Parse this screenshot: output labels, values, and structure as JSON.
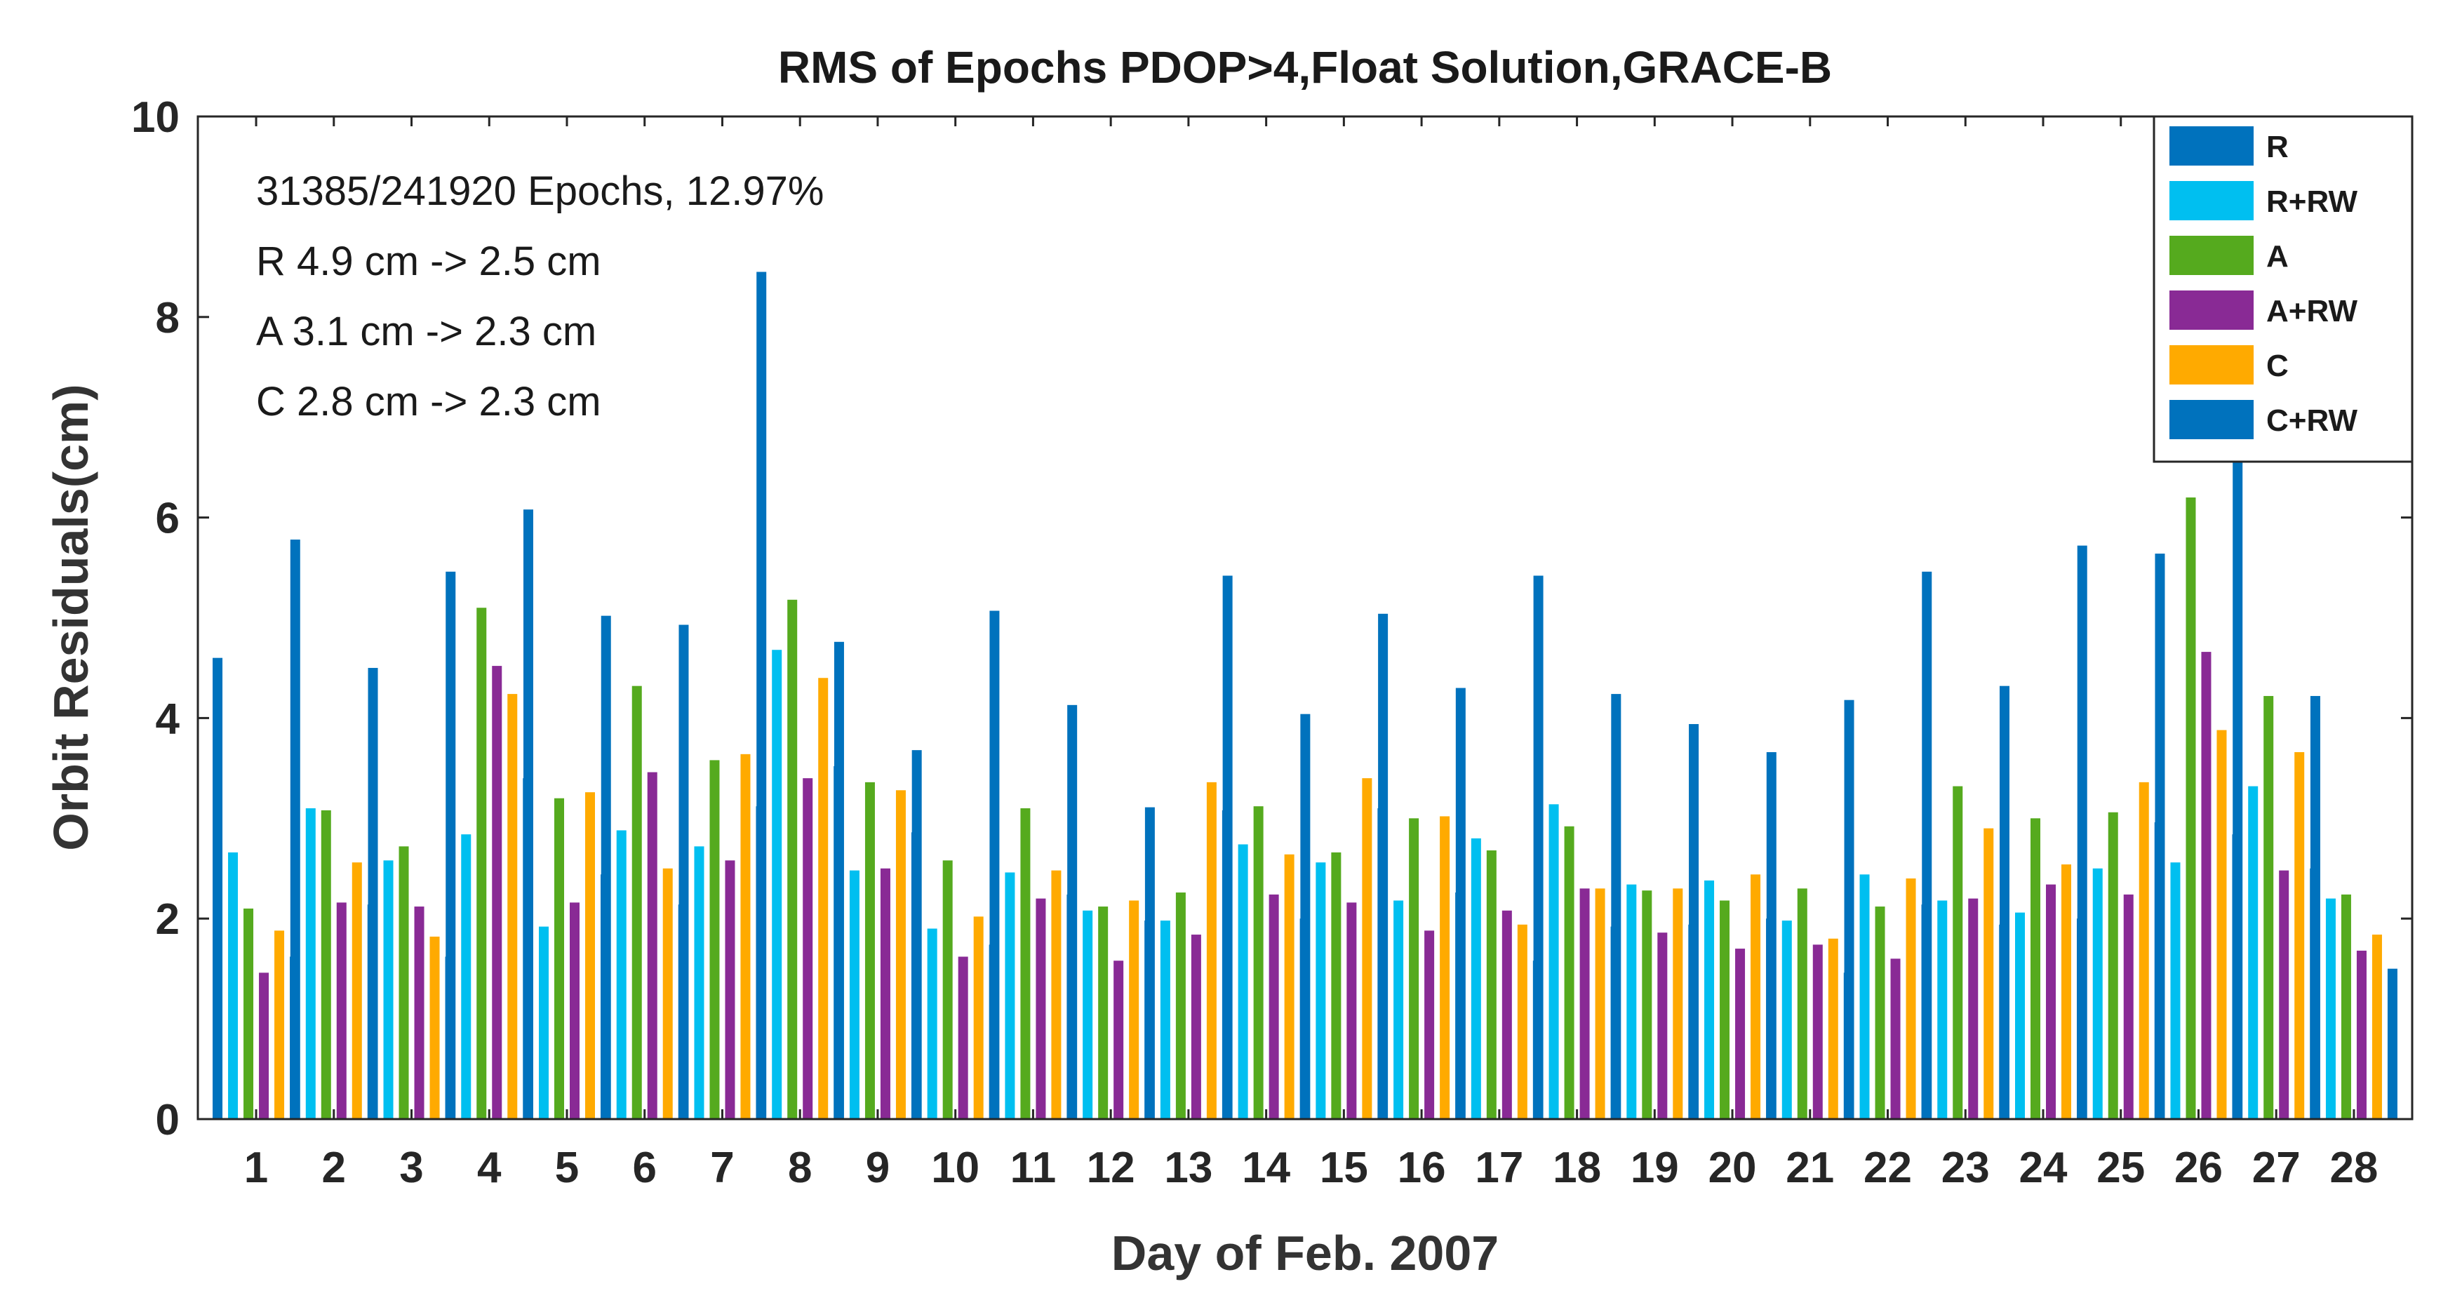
{
  "chart_data": {
    "type": "bar",
    "title": "RMS of Epochs PDOP>4,Float Solution,GRACE-B",
    "xlabel": "Day of Feb. 2007",
    "ylabel": "Orbit Residuals(cm)",
    "ylim": [
      0,
      10
    ],
    "yticks": [
      "0",
      "2",
      "4",
      "6",
      "8",
      "10"
    ],
    "categories": [
      "1",
      "2",
      "3",
      "4",
      "5",
      "6",
      "7",
      "8",
      "9",
      "10",
      "11",
      "12",
      "13",
      "14",
      "15",
      "16",
      "17",
      "18",
      "19",
      "20",
      "21",
      "22",
      "23",
      "24",
      "25",
      "26",
      "27",
      "28"
    ],
    "legend_position": "top-right",
    "annotations": [
      "31385/241920 Epochs, 12.97%",
      "R 4.9 cm -> 2.5 cm",
      "A 3.1 cm -> 2.3 cm",
      "C 2.8 cm -> 2.3 cm"
    ],
    "series": [
      {
        "name": "R",
        "color": "#0072BD",
        "values": [
          4.6,
          5.78,
          4.5,
          5.46,
          6.08,
          5.02,
          4.93,
          8.45,
          4.76,
          3.68,
          5.07,
          4.13,
          3.11,
          5.42,
          4.04,
          5.04,
          4.3,
          5.42,
          4.24,
          3.94,
          3.66,
          4.18,
          5.46,
          4.32,
          5.72,
          5.64,
          7.0,
          4.22
        ]
      },
      {
        "name": "R+RW",
        "color": "#00BFF0",
        "values": [
          2.66,
          3.1,
          2.58,
          2.84,
          1.92,
          2.88,
          2.72,
          4.68,
          2.48,
          1.9,
          2.46,
          2.08,
          1.98,
          2.74,
          2.56,
          2.18,
          2.8,
          3.14,
          2.34,
          2.38,
          1.98,
          2.44,
          2.18,
          2.06,
          2.5,
          2.56,
          3.32,
          2.2
        ]
      },
      {
        "name": "A",
        "color": "#55AA1E",
        "values": [
          2.1,
          3.08,
          2.72,
          5.1,
          3.2,
          4.32,
          3.58,
          5.18,
          3.36,
          2.58,
          3.1,
          2.12,
          2.26,
          3.12,
          2.66,
          3.0,
          2.68,
          2.92,
          2.28,
          2.18,
          2.3,
          2.12,
          3.32,
          3.0,
          3.06,
          6.2,
          4.22,
          2.24
        ]
      },
      {
        "name": "A+RW",
        "color": "#892A95",
        "values": [
          1.46,
          2.16,
          2.12,
          4.52,
          2.16,
          3.46,
          2.58,
          3.4,
          2.5,
          1.62,
          2.2,
          1.58,
          1.84,
          2.24,
          2.16,
          1.88,
          2.08,
          2.3,
          1.86,
          1.7,
          1.74,
          1.6,
          2.2,
          2.34,
          2.24,
          4.66,
          2.48,
          1.68
        ]
      },
      {
        "name": "C",
        "color": "#FFAA00",
        "values": [
          1.88,
          2.56,
          1.82,
          4.24,
          3.26,
          2.5,
          3.64,
          4.4,
          3.28,
          2.02,
          2.48,
          2.18,
          3.36,
          2.64,
          3.4,
          3.02,
          1.94,
          2.3,
          2.3,
          2.44,
          1.8,
          2.4,
          2.9,
          2.54,
          3.36,
          3.88,
          3.66,
          1.84
        ]
      },
      {
        "name": "C+RW",
        "color": "#0072BD",
        "values": [
          1.62,
          2.14,
          1.62,
          3.4,
          2.44,
          2.14,
          3.12,
          3.52,
          2.86,
          1.74,
          2.24,
          1.98,
          3.08,
          2.0,
          3.1,
          2.26,
          1.58,
          1.92,
          1.94,
          2.0,
          1.46,
          2.14,
          1.94,
          2.0,
          2.96,
          2.84,
          2.5,
          1.5
        ]
      }
    ]
  }
}
